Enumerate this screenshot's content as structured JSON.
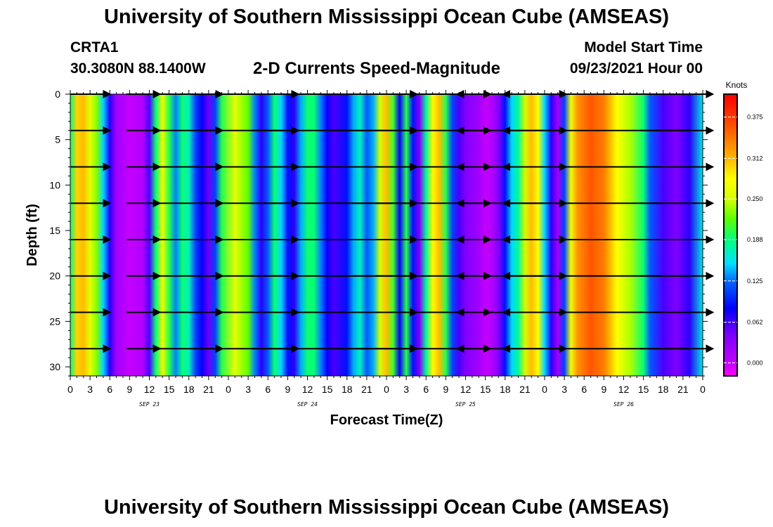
{
  "header": {
    "title": "University of Southern Mississippi Ocean Cube (AMSEAS)",
    "station": "CRTA1",
    "coordinates": "30.3080N  88.1400W",
    "subtitle": "2-D Currents Speed-Magnitude",
    "model_start_label": "Model Start Time",
    "model_start_value": "09/23/2021 Hour 00"
  },
  "footer": {
    "title": "University of Southern Mississippi Ocean Cube (AMSEAS)"
  },
  "chart_data": {
    "type": "heatmap",
    "xlabel": "Forecast Time(Z)",
    "ylabel": "Depth (ft)",
    "xlim": [
      0,
      96
    ],
    "ylim": [
      0,
      31
    ],
    "y_inverted": true,
    "x_tick_labels": [
      "0",
      "3",
      "6",
      "9",
      "12",
      "15",
      "18",
      "21",
      "0",
      "3",
      "6",
      "9",
      "12",
      "15",
      "18",
      "21",
      "0",
      "3",
      "6",
      "9",
      "12",
      "15",
      "18",
      "21",
      "0",
      "3",
      "6",
      "9",
      "12",
      "15",
      "18",
      "21",
      "0"
    ],
    "y_ticks": [
      0,
      5,
      10,
      15,
      20,
      25,
      30
    ],
    "date_labels": [
      {
        "text": "SEP 23",
        "hour": 12
      },
      {
        "text": "SEP 24",
        "hour": 36
      },
      {
        "text": "SEP 25",
        "hour": 60
      },
      {
        "text": "SEP 26",
        "hour": 84
      }
    ],
    "colorbar": {
      "title": "Knots",
      "labels": [
        "0.375",
        "0.312",
        "0.250",
        "0.188",
        "0.125",
        "0.062",
        "0.000"
      ],
      "values": [
        0.375,
        0.312,
        0.25,
        0.188,
        0.125,
        0.062,
        0.0
      ],
      "range": [
        -0.02,
        0.41
      ]
    },
    "speed_profile": [
      {
        "hour": 0,
        "speed": 0.19
      },
      {
        "hour": 1,
        "speed": 0.3
      },
      {
        "hour": 2,
        "speed": 0.31
      },
      {
        "hour": 3,
        "speed": 0.26
      },
      {
        "hour": 4,
        "speed": 0.23
      },
      {
        "hour": 5,
        "speed": 0.15
      },
      {
        "hour": 6,
        "speed": 0.07
      },
      {
        "hour": 7,
        "speed": 0.02
      },
      {
        "hour": 9,
        "speed": 0.0
      },
      {
        "hour": 11,
        "speed": 0.01
      },
      {
        "hour": 12,
        "speed": 0.06
      },
      {
        "hour": 13,
        "speed": 0.19
      },
      {
        "hour": 14,
        "speed": 0.27
      },
      {
        "hour": 15,
        "speed": 0.2
      },
      {
        "hour": 16,
        "speed": 0.13
      },
      {
        "hour": 17,
        "speed": 0.19
      },
      {
        "hour": 18,
        "speed": 0.17
      },
      {
        "hour": 19,
        "speed": 0.11
      },
      {
        "hour": 20,
        "speed": 0.08
      },
      {
        "hour": 21,
        "speed": 0.05
      },
      {
        "hour": 22,
        "speed": 0.11
      },
      {
        "hour": 23,
        "speed": 0.2
      },
      {
        "hour": 25,
        "speed": 0.26
      },
      {
        "hour": 27,
        "speed": 0.22
      },
      {
        "hour": 28,
        "speed": 0.13
      },
      {
        "hour": 29,
        "speed": 0.07
      },
      {
        "hour": 30,
        "speed": 0.12
      },
      {
        "hour": 31,
        "speed": 0.19
      },
      {
        "hour": 32,
        "speed": 0.15
      },
      {
        "hour": 33,
        "speed": 0.09
      },
      {
        "hour": 34,
        "speed": 0.07
      },
      {
        "hour": 35,
        "speed": 0.14
      },
      {
        "hour": 36,
        "speed": 0.19
      },
      {
        "hour": 37,
        "speed": 0.19
      },
      {
        "hour": 38,
        "speed": 0.13
      },
      {
        "hour": 39,
        "speed": 0.08
      },
      {
        "hour": 40,
        "speed": 0.06
      },
      {
        "hour": 42,
        "speed": 0.09
      },
      {
        "hour": 43,
        "speed": 0.14
      },
      {
        "hour": 44,
        "speed": 0.17
      },
      {
        "hour": 45,
        "speed": 0.12
      },
      {
        "hour": 46,
        "speed": 0.14
      },
      {
        "hour": 47,
        "speed": 0.25
      },
      {
        "hour": 48,
        "speed": 0.31
      },
      {
        "hour": 49,
        "speed": 0.21
      },
      {
        "hour": 50,
        "speed": 0.08
      },
      {
        "hour": 51,
        "speed": 0.2
      },
      {
        "hour": 52,
        "speed": 0.09
      },
      {
        "hour": 53,
        "speed": 0.04
      },
      {
        "hour": 54,
        "speed": 0.18
      },
      {
        "hour": 55,
        "speed": 0.28
      },
      {
        "hour": 56,
        "speed": 0.31
      },
      {
        "hour": 57,
        "speed": 0.2
      },
      {
        "hour": 58,
        "speed": 0.11
      },
      {
        "hour": 59,
        "speed": 0.06
      },
      {
        "hour": 60,
        "speed": 0.04
      },
      {
        "hour": 62,
        "speed": 0.02
      },
      {
        "hour": 63,
        "speed": 0.0
      },
      {
        "hour": 64,
        "speed": 0.01
      },
      {
        "hour": 65,
        "speed": 0.04
      },
      {
        "hour": 66,
        "speed": 0.09
      },
      {
        "hour": 67,
        "speed": 0.15
      },
      {
        "hour": 68,
        "speed": 0.18
      },
      {
        "hour": 69,
        "speed": 0.25
      },
      {
        "hour": 70,
        "speed": 0.31
      },
      {
        "hour": 71,
        "speed": 0.28
      },
      {
        "hour": 72,
        "speed": 0.15
      },
      {
        "hour": 73,
        "speed": 0.07
      },
      {
        "hour": 74,
        "speed": 0.02
      },
      {
        "hour": 75,
        "speed": 0.11
      },
      {
        "hour": 76,
        "speed": 0.27
      },
      {
        "hour": 77,
        "speed": 0.33
      },
      {
        "hour": 79,
        "speed": 0.36
      },
      {
        "hour": 81,
        "speed": 0.34
      },
      {
        "hour": 83,
        "speed": 0.28
      },
      {
        "hour": 85,
        "speed": 0.24
      },
      {
        "hour": 87,
        "speed": 0.19
      },
      {
        "hour": 88,
        "speed": 0.12
      },
      {
        "hour": 90,
        "speed": 0.06
      },
      {
        "hour": 92,
        "speed": 0.04
      },
      {
        "hour": 94,
        "speed": 0.07
      },
      {
        "hour": 96,
        "speed": 0.16
      }
    ],
    "vector_rows_depth_ft": [
      0,
      4,
      8,
      12,
      16,
      20,
      24,
      28
    ],
    "vector_columns": [
      {
        "hour": 3,
        "len": 0.7,
        "dir": 0
      },
      {
        "hour": 11,
        "len": 0.6,
        "dir": 0
      },
      {
        "hour": 18,
        "len": 1.2,
        "dir": 0
      },
      {
        "hour": 27,
        "len": 1.8,
        "dir": 0
      },
      {
        "hour": 40,
        "len": 3.0,
        "dir": 0
      },
      {
        "hour": 52,
        "len": 2.8,
        "dir": 0
      },
      {
        "hour": 63,
        "len": 1.0,
        "dir": 1
      },
      {
        "hour": 71,
        "len": 1.0,
        "dir": 0
      },
      {
        "hour": 80,
        "len": 3.4,
        "dir": 1
      },
      {
        "hour": 92,
        "len": 1.3,
        "dir": 0
      }
    ]
  }
}
